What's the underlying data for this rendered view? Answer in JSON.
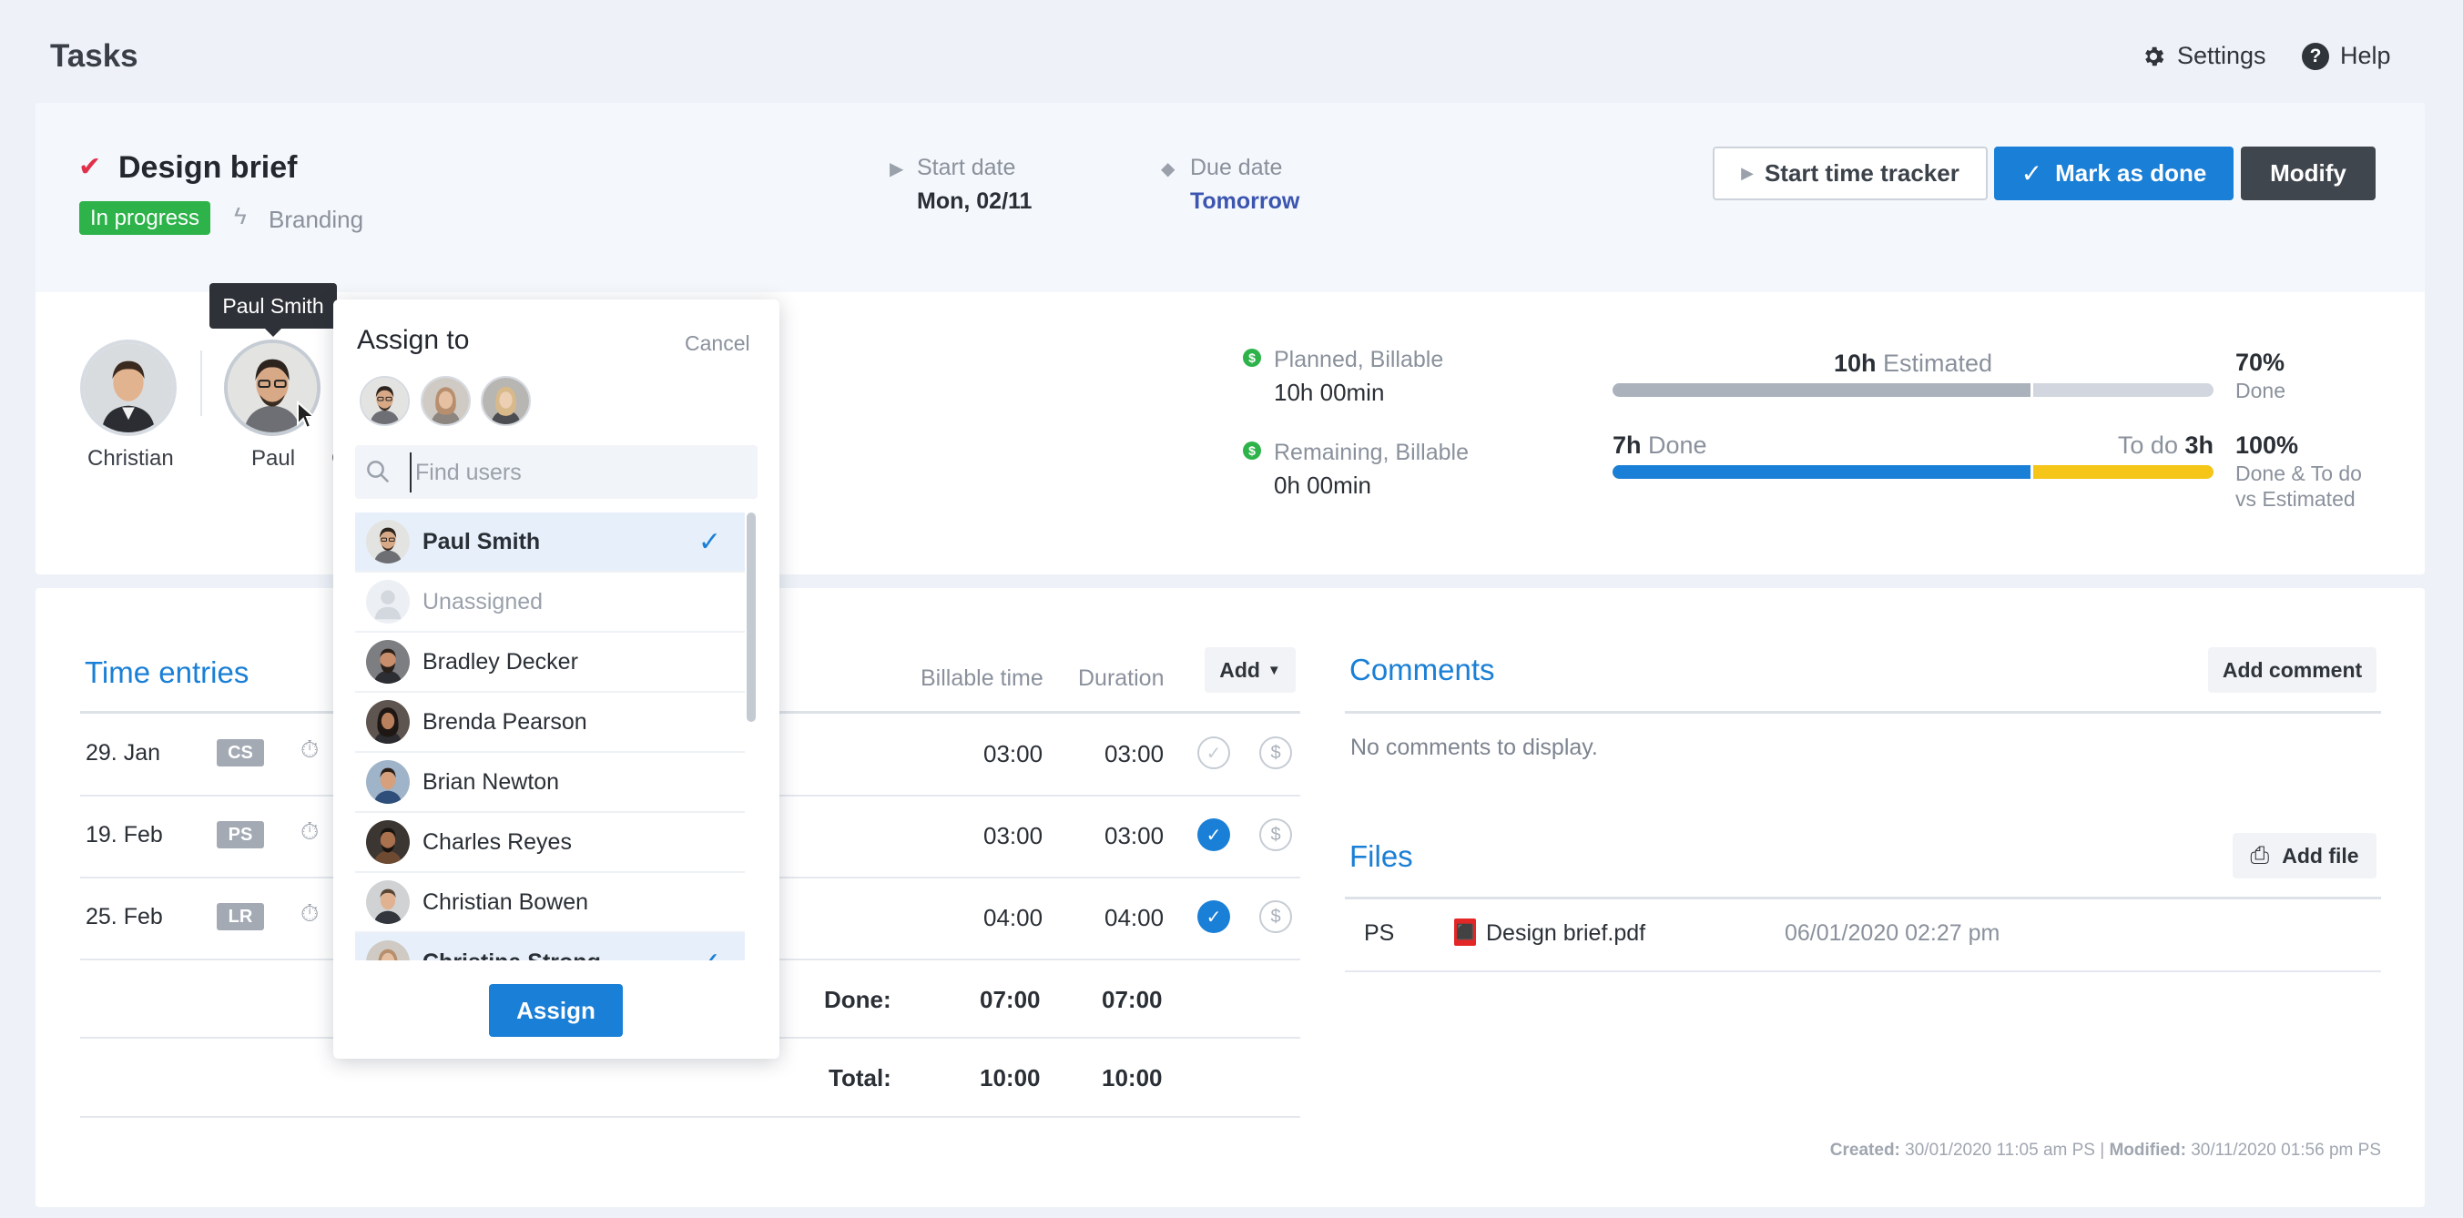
{
  "header": {
    "title": "Tasks",
    "settings_label": "Settings",
    "help_label": "Help"
  },
  "task": {
    "title": "Design brief",
    "status": "In progress",
    "project": "Branding",
    "start_date_label": "Start date",
    "start_date": "Mon, 02/11",
    "due_date_label": "Due date",
    "due_date": "Tomorrow",
    "buttons": {
      "start_tracker": "Start time tracker",
      "mark_done": "Mark as done",
      "modify": "Modify"
    }
  },
  "assignees": {
    "tooltip": "Paul Smith",
    "people": [
      {
        "name": "Christian"
      },
      {
        "name": "Paul"
      }
    ],
    "truncated_name": "C"
  },
  "estimates": {
    "planned_label": "Planned, Billable",
    "planned_value": "10h 00min",
    "remaining_label": "Remaining, Billable",
    "remaining_value": "0h 00min",
    "estimated_value": "10h",
    "estimated_label": "Estimated",
    "done_value": "7h",
    "done_label": "Done",
    "todo_label": "To do",
    "todo_value": "3h",
    "done_pct": "70%",
    "done_pct_label": "Done",
    "total_pct": "100%",
    "total_pct_label_1": "Done & To do",
    "total_pct_label_2": "vs Estimated",
    "bar1_fraction": 0.7,
    "bar2_fraction": 0.7
  },
  "time_entries": {
    "title": "Time entries",
    "col_billable": "Billable time",
    "col_duration": "Duration",
    "add_label": "Add",
    "rows": [
      {
        "date": "29. Jan",
        "initials": "CS",
        "billable": "03:00",
        "duration": "03:00",
        "approved": false
      },
      {
        "date": "19. Feb",
        "initials": "PS",
        "billable": "03:00",
        "duration": "03:00",
        "approved": true
      },
      {
        "date": "25. Feb",
        "initials": "LR",
        "billable": "04:00",
        "duration": "04:00",
        "approved": true
      }
    ],
    "done_label": "Done:",
    "done_billable": "07:00",
    "done_duration": "07:00",
    "total_label": "Total:",
    "total_billable": "10:00",
    "total_duration": "10:00"
  },
  "comments": {
    "title": "Comments",
    "add_label": "Add comment",
    "empty": "No comments to display."
  },
  "files": {
    "title": "Files",
    "add_label": "Add file",
    "items": [
      {
        "owner": "PS",
        "name": "Design brief.pdf",
        "date": "06/01/2020 02:27 pm"
      }
    ]
  },
  "meta": {
    "created_label": "Created:",
    "created_value": "30/01/2020 11:05 am PS",
    "separator": "|",
    "modified_label": "Modified:",
    "modified_value": "30/11/2020 01:56 pm PS"
  },
  "assign_popup": {
    "title": "Assign to",
    "cancel": "Cancel",
    "search_placeholder": "Find users",
    "search_value": "",
    "users": [
      {
        "name": "Paul Smith",
        "selected": true
      },
      {
        "name": "Unassigned",
        "selected": false
      },
      {
        "name": "Bradley Decker",
        "selected": false
      },
      {
        "name": "Brenda Pearson",
        "selected": false
      },
      {
        "name": "Brian Newton",
        "selected": false
      },
      {
        "name": "Charles Reyes",
        "selected": false
      },
      {
        "name": "Christian Bowen",
        "selected": false
      },
      {
        "name": "Christina Strong",
        "selected": true
      }
    ],
    "assign_label": "Assign"
  }
}
